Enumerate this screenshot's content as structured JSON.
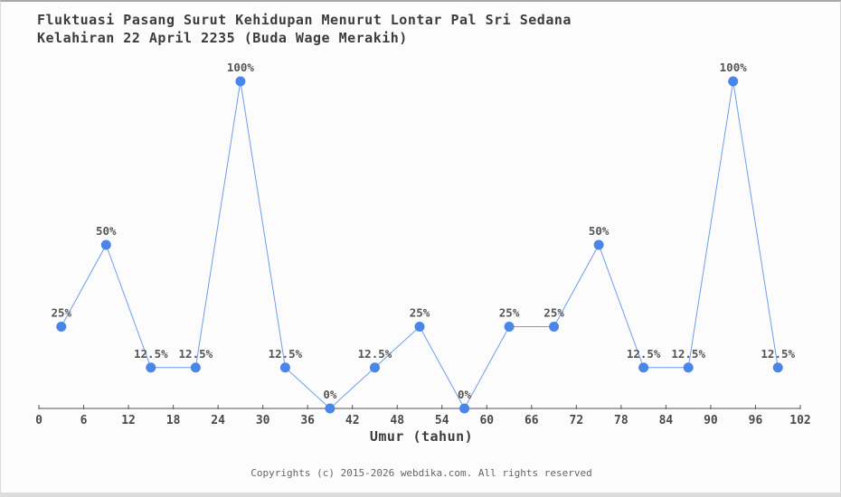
{
  "page": {
    "footer": "Copyrights (c) 2015-2026 webdika.com. All rights reserved"
  },
  "chart_data": {
    "type": "line",
    "title_line1": "Fluktuasi Pasang Surut Kehidupan Menurut Lontar Pal Sri Sedana",
    "title_line2": "Kelahiran 22 April 2235 (Buda Wage Merakih)",
    "xlabel": "Umur (tahun)",
    "ylabel": "",
    "x": [
      3,
      9,
      15,
      21,
      27,
      33,
      39,
      45,
      51,
      57,
      63,
      69,
      75,
      81,
      87,
      93,
      99
    ],
    "values": [
      25,
      50,
      12.5,
      12.5,
      100,
      12.5,
      0,
      12.5,
      25,
      0,
      25,
      25,
      50,
      12.5,
      12.5,
      100,
      12.5
    ],
    "point_labels": [
      "25%",
      "50%",
      "12.5%",
      "12.5%",
      "100%",
      "12.5%",
      "0%",
      "12.5%",
      "25%",
      "0%",
      "25%",
      "25%",
      "50%",
      "12.5%",
      "12.5%",
      "100%",
      "12.5%"
    ],
    "x_ticks": [
      0,
      6,
      12,
      18,
      24,
      30,
      36,
      42,
      48,
      54,
      60,
      66,
      72,
      78,
      84,
      90,
      96,
      102
    ],
    "xlim": [
      0,
      102
    ],
    "ylim": [
      0,
      100
    ],
    "grid": false,
    "legend": false,
    "colors": {
      "marker": "#4a86e8",
      "line": "#6d9eeb",
      "point_label": "#555555",
      "axis": "#555555",
      "tick_label": "#4a4a4a"
    }
  }
}
